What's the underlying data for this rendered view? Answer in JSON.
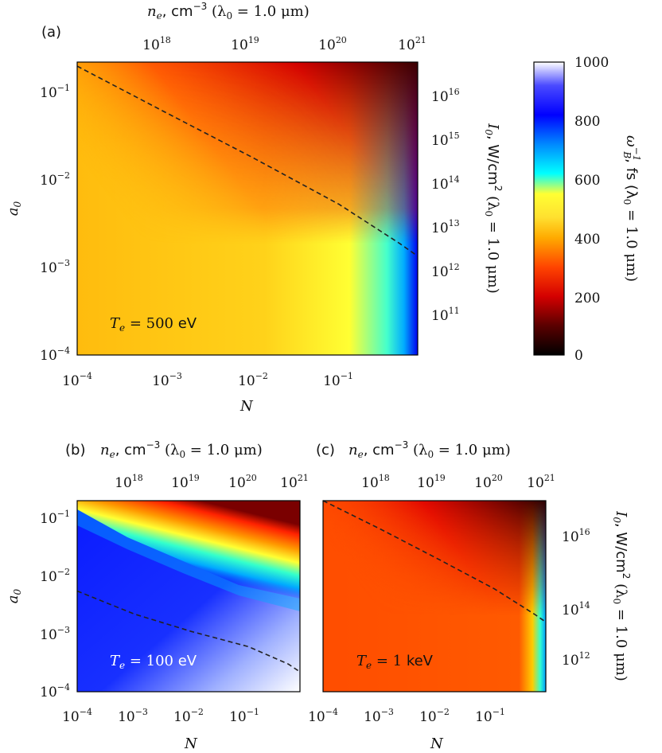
{
  "chart_data": [
    {
      "type": "heatmap",
      "panel_label": "(a)",
      "annotation": {
        "math": "T",
        "sub": "e",
        "eq": " = 500 ",
        "unit": "eV",
        "color": "#111111"
      },
      "T_e_eV": 500,
      "x_axis": {
        "label": "N",
        "log": true,
        "range": [
          0.0001,
          0.8
        ],
        "ticks": [
          {
            "base": "10",
            "exp": "−4"
          },
          {
            "base": "10",
            "exp": "−3"
          },
          {
            "base": "10",
            "exp": "−2"
          },
          {
            "base": "10",
            "exp": "−1"
          }
        ]
      },
      "y_axis": {
        "label": "a",
        "label_sub": "0",
        "log": true,
        "range": [
          0.0001,
          0.2
        ],
        "ticks": [
          {
            "base": "10",
            "exp": "−4"
          },
          {
            "base": "10",
            "exp": "−3"
          },
          {
            "base": "10",
            "exp": "−2"
          },
          {
            "base": "10",
            "exp": "−1"
          }
        ]
      },
      "top_axis": {
        "label_pre": "n",
        "label_sub": "e",
        "label_mid": ", cm",
        "label_exp": "−3",
        "label_post": " (λ",
        "label_post_sub": "0",
        "label_end": " = 1.0 μm)",
        "ticks": [
          {
            "base": "10",
            "exp": "18"
          },
          {
            "base": "10",
            "exp": "19"
          },
          {
            "base": "10",
            "exp": "20"
          },
          {
            "base": "10",
            "exp": "21"
          }
        ]
      },
      "right_axis": {
        "label_pre": "I",
        "label_sub": "0",
        "label_mid": ", W/cm",
        "label_exp": "2",
        "label_post": " (λ",
        "label_post_sub": "0",
        "label_end": " = 1.0 μm)",
        "ticks": [
          {
            "base": "10",
            "exp": "11"
          },
          {
            "base": "10",
            "exp": "12"
          },
          {
            "base": "10",
            "exp": "13"
          },
          {
            "base": "10",
            "exp": "14"
          },
          {
            "base": "10",
            "exp": "15"
          },
          {
            "base": "10",
            "exp": "16"
          }
        ]
      },
      "dashed_curve": {
        "N": [
          0.0001,
          0.001,
          0.01,
          0.1,
          0.5,
          0.8
        ],
        "a0": [
          0.18,
          0.055,
          0.017,
          0.005,
          0.0018,
          0.0013
        ]
      }
    },
    {
      "type": "heatmap",
      "panel_label": "(b)",
      "annotation": {
        "math": "T",
        "sub": "e",
        "eq": " = 100 ",
        "unit": "eV",
        "color": "#ffffff"
      },
      "T_e_eV": 100,
      "x_axis": {
        "label": "N",
        "log": true,
        "range": [
          0.0001,
          0.8
        ],
        "ticks": [
          {
            "base": "10",
            "exp": "−4"
          },
          {
            "base": "10",
            "exp": "−3"
          },
          {
            "base": "10",
            "exp": "−2"
          },
          {
            "base": "10",
            "exp": "−1"
          }
        ]
      },
      "y_axis": {
        "label": "a",
        "label_sub": "0",
        "log": true,
        "range": [
          0.0001,
          0.2
        ],
        "ticks": [
          {
            "base": "10",
            "exp": "−4"
          },
          {
            "base": "10",
            "exp": "−3"
          },
          {
            "base": "10",
            "exp": "−2"
          },
          {
            "base": "10",
            "exp": "−1"
          }
        ]
      },
      "top_axis": {
        "label_pre": "n",
        "label_sub": "e",
        "label_mid": ", cm",
        "label_exp": "−3",
        "label_post": " (λ",
        "label_post_sub": "0",
        "label_end": " = 1.0 μm)",
        "ticks": [
          {
            "base": "10",
            "exp": "18"
          },
          {
            "base": "10",
            "exp": "19"
          },
          {
            "base": "10",
            "exp": "20"
          },
          {
            "base": "10",
            "exp": "21"
          }
        ]
      },
      "dashed_curve": {
        "N": [
          0.0001,
          0.001,
          0.01,
          0.1,
          0.5,
          0.8
        ],
        "a0": [
          0.0055,
          0.0022,
          0.0011,
          0.0006,
          0.0003,
          0.00022
        ]
      }
    },
    {
      "type": "heatmap",
      "panel_label": "(c)",
      "annotation": {
        "math": "T",
        "sub": "e",
        "eq": " = 1 ",
        "unit": "keV",
        "color": "#111111"
      },
      "T_e_eV": 1000,
      "x_axis": {
        "label": "N",
        "log": true,
        "range": [
          0.0001,
          0.8
        ],
        "ticks": [
          {
            "base": "10",
            "exp": "−4"
          },
          {
            "base": "10",
            "exp": "−3"
          },
          {
            "base": "10",
            "exp": "−2"
          },
          {
            "base": "10",
            "exp": "−1"
          }
        ]
      },
      "top_axis": {
        "label_pre": "n",
        "label_sub": "e",
        "label_mid": ", cm",
        "label_exp": "−3",
        "label_post": " (λ",
        "label_post_sub": "0",
        "label_end": " = 1.0 μm)",
        "ticks": [
          {
            "base": "10",
            "exp": "18"
          },
          {
            "base": "10",
            "exp": "19"
          },
          {
            "base": "10",
            "exp": "20"
          },
          {
            "base": "10",
            "exp": "21"
          }
        ]
      },
      "right_axis": {
        "label_pre": "I",
        "label_sub": "0",
        "label_mid": ", W/cm",
        "label_exp": "2",
        "label_post": " (λ",
        "label_post_sub": "0",
        "label_end": " = 1.0 μm)",
        "ticks": [
          {
            "base": "10",
            "exp": "12"
          },
          {
            "base": "10",
            "exp": "14"
          },
          {
            "base": "10",
            "exp": "16"
          }
        ]
      },
      "dashed_curve": {
        "N": [
          0.0001,
          0.001,
          0.01,
          0.1,
          0.5,
          0.8
        ],
        "a0": [
          0.2,
          0.065,
          0.02,
          0.006,
          0.0022,
          0.0016
        ]
      }
    }
  ],
  "colorbar": {
    "label_pre": "ω",
    "label_sub": "B",
    "label_exp": "−1",
    "label_mid": ", fs (λ",
    "label_post_sub": "0",
    "label_end": " = 1.0 μm)",
    "range": [
      0,
      1000
    ],
    "ticks": [
      "0",
      "200",
      "400",
      "600",
      "800",
      "1000"
    ],
    "colormap": [
      "#000000",
      "#8b0000",
      "#ff2200",
      "#ff9900",
      "#ffcc00",
      "#ffff33",
      "#00ffff",
      "#0088ff",
      "#0000ff",
      "#ffffff"
    ]
  }
}
